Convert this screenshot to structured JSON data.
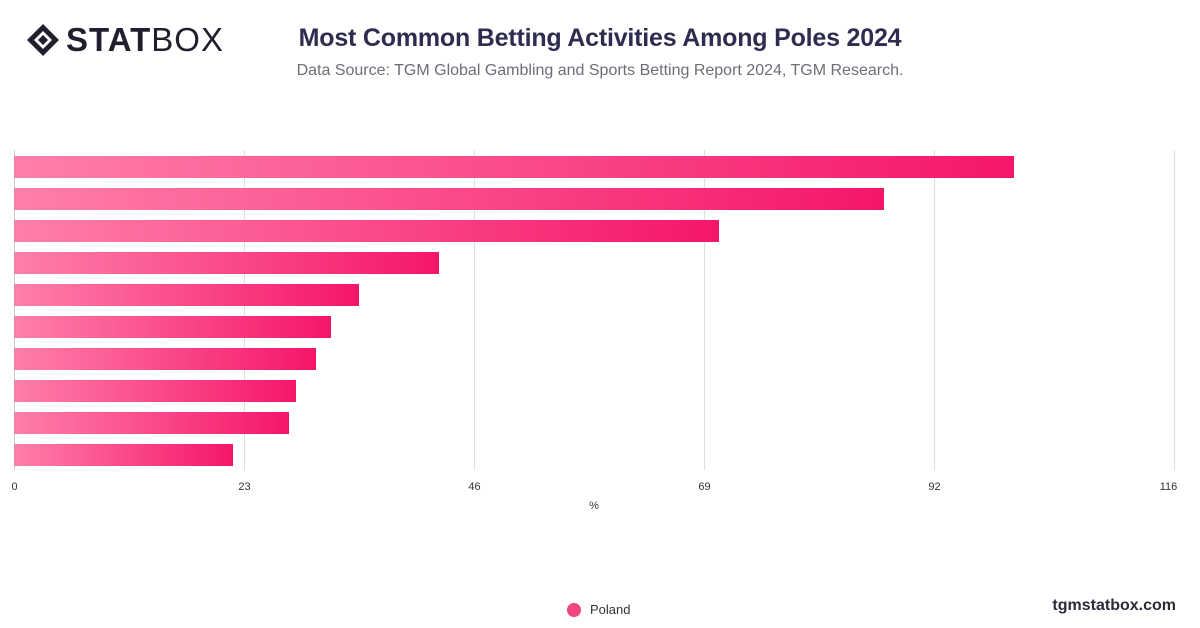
{
  "brand": {
    "logo_bold": "STAT",
    "logo_light": "BOX",
    "website": "tgmstatbox.com"
  },
  "header": {
    "title": "Most Common Betting Activities Among Poles 2024",
    "subtitle": "Data Source: TGM Global Gambling and Sports Betting Report 2024, TGM Research."
  },
  "legend": {
    "label": "Poland"
  },
  "colors": {
    "bar_start": "#ff7fab",
    "bar_end": "#f5166a",
    "legend_dot": "#f0457f",
    "grid": "#dddddd"
  },
  "chart_data": {
    "type": "bar",
    "orientation": "horizontal",
    "categories": [
      "",
      "",
      "",
      "",
      "",
      "",
      "",
      "",
      "",
      ""
    ],
    "series": [
      {
        "name": "Poland",
        "values": [
          100,
          87,
          70.5,
          42.5,
          34.5,
          31.7,
          30.2,
          28.2,
          27.5,
          21.9
        ]
      }
    ],
    "xlabel": "%",
    "xlim": [
      0,
      116
    ],
    "xticks": [
      0,
      23,
      46,
      69,
      92,
      116
    ],
    "grid": true,
    "legend_position": "bottom"
  }
}
